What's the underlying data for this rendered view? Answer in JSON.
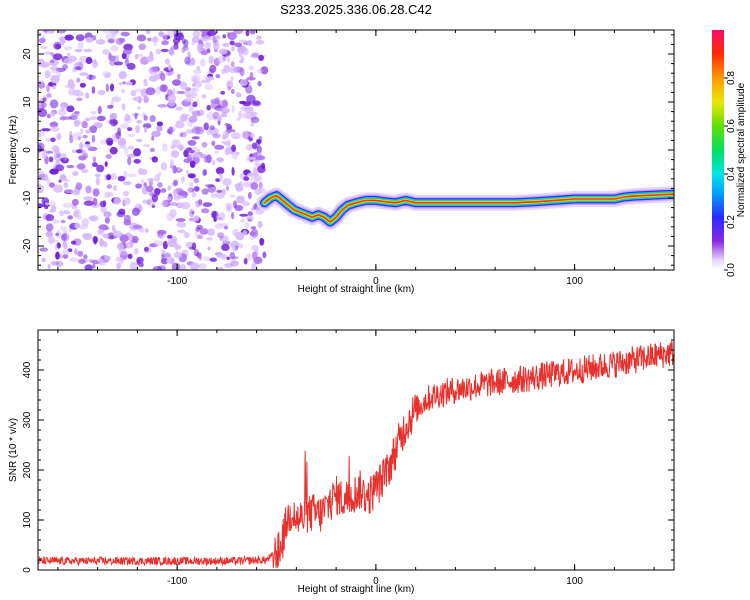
{
  "title": "S233.2025.336.06.28.C42",
  "colors": {
    "snr_line": "#e8302c",
    "axis": "#000000",
    "noise_light": "#d6b8ff",
    "noise_mid": "#a86cf0",
    "noise_dark": "#6a1ad8"
  },
  "chart_data": [
    {
      "type": "heatmap",
      "name": "spectrogram",
      "xlabel": "Height of straight line (km)",
      "ylabel": "Frequency (Hz)",
      "xlim": [
        -170,
        150
      ],
      "ylim": [
        -25,
        25
      ],
      "xticks": [
        -100,
        0,
        100
      ],
      "xtick_labels": [
        "-100",
        "0",
        "100"
      ],
      "yticks": [
        -20,
        -10,
        0,
        10,
        20
      ],
      "ytick_labels": [
        "-20",
        "-10",
        "0",
        "10",
        "20"
      ],
      "noise_region_x": [
        -170,
        -56
      ],
      "peak_track": {
        "x": [
          -56,
          -53,
          -50,
          -47,
          -44,
          -41,
          -38,
          -35,
          -32,
          -29,
          -26,
          -23,
          -20,
          -17,
          -14,
          -10,
          -5,
          0,
          5,
          10,
          15,
          20,
          30,
          40,
          50,
          60,
          70,
          80,
          90,
          100,
          110,
          120,
          125,
          130,
          140,
          150
        ],
        "y": [
          -11,
          -10,
          -9.5,
          -10.5,
          -11.5,
          -12.5,
          -13,
          -13.5,
          -14,
          -13.5,
          -14,
          -15,
          -14,
          -12.5,
          -11.5,
          -11,
          -10.5,
          -10.5,
          -10.8,
          -11,
          -10.5,
          -11,
          -11,
          -11,
          -11,
          -11,
          -11,
          -10.8,
          -10.5,
          -10.2,
          -10.2,
          -10.2,
          -9.8,
          -9.6,
          -9.4,
          -9.2
        ]
      },
      "colorbar": {
        "label": "Normalized spectral amplitude",
        "range": [
          0,
          1
        ],
        "ticks": [
          0.0,
          0.2,
          0.4,
          0.6,
          0.8
        ],
        "tick_labels": [
          "0.0",
          "0.2",
          "0.4",
          "0.6",
          "0.8"
        ]
      }
    },
    {
      "type": "line",
      "name": "snr",
      "xlabel": "Height of straight line (km)",
      "ylabel": "SNR (10 * v/v)",
      "xlim": [
        -170,
        150
      ],
      "ylim": [
        0,
        480
      ],
      "xticks": [
        -100,
        0,
        100
      ],
      "xtick_labels": [
        "-100",
        "0",
        "100"
      ],
      "yticks": [
        0,
        100,
        200,
        300,
        400
      ],
      "ytick_labels": [
        "0",
        "100",
        "200",
        "300",
        "400"
      ],
      "series": [
        {
          "name": "SNR",
          "x": [
            -170,
            -150,
            -130,
            -110,
            -90,
            -70,
            -55,
            -48,
            -45,
            -42,
            -40,
            -36,
            -32,
            -28,
            -24,
            -20,
            -16,
            -12,
            -8,
            -4,
            0,
            5,
            10,
            15,
            20,
            25,
            30,
            40,
            50,
            60,
            70,
            80,
            90,
            100,
            110,
            120,
            130,
            140,
            150
          ],
          "y": [
            18,
            18,
            18,
            18,
            18,
            18,
            20,
            40,
            95,
            120,
            100,
            105,
            115,
            110,
            130,
            150,
            140,
            150,
            160,
            145,
            165,
            190,
            240,
            290,
            320,
            340,
            350,
            360,
            368,
            375,
            380,
            385,
            392,
            398,
            405,
            412,
            420,
            428,
            435
          ]
        }
      ]
    }
  ]
}
